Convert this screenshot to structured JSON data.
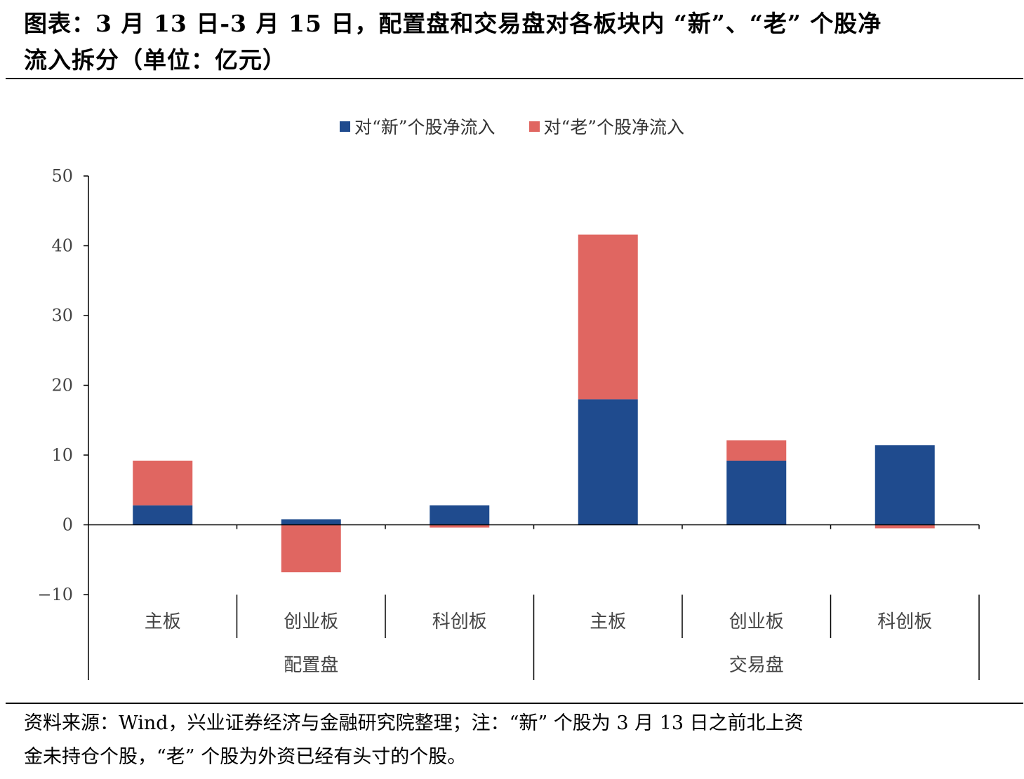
{
  "header": {
    "title_line1": "图表：3 月 13 日-3 月 15 日，配置盘和交易盘对各板块内 “新”、“老” 个股净",
    "title_line2": "流入拆分（单位：亿元）"
  },
  "footer": {
    "source_line1": "资料来源：Wind，兴业证券经济与金融研究院整理；注：“新” 个股为 3 月 13 日之前北上资",
    "source_line2": "金未持仓个股，“老” 个股为外资已经有头寸的个股。"
  },
  "chart_data": {
    "type": "bar",
    "stacked": true,
    "categories": [
      "主板",
      "创业板",
      "科创板",
      "主板",
      "创业板",
      "科创板"
    ],
    "groups": [
      {
        "label": "配置盘",
        "categories": [
          "主板",
          "创业板",
          "科创板"
        ]
      },
      {
        "label": "交易盘",
        "categories": [
          "主板",
          "创业板",
          "科创板"
        ]
      }
    ],
    "series": [
      {
        "name": "对“新”个股净流入",
        "color": "#1f4b8e",
        "values": [
          2.8,
          0.8,
          2.8,
          18.0,
          9.2,
          11.4
        ]
      },
      {
        "name": "对“老”个股净流入",
        "color": "#e06661",
        "values": [
          6.4,
          -6.8,
          -0.4,
          23.6,
          2.9,
          -0.5
        ]
      }
    ],
    "ylim": [
      -10,
      50
    ],
    "yticks": [
      50,
      40,
      30,
      20,
      10,
      0,
      -10
    ],
    "ytick_labels": [
      "50",
      "40",
      "30",
      "20",
      "10",
      "0",
      "−10"
    ],
    "grid": false,
    "legend": "top-center"
  }
}
